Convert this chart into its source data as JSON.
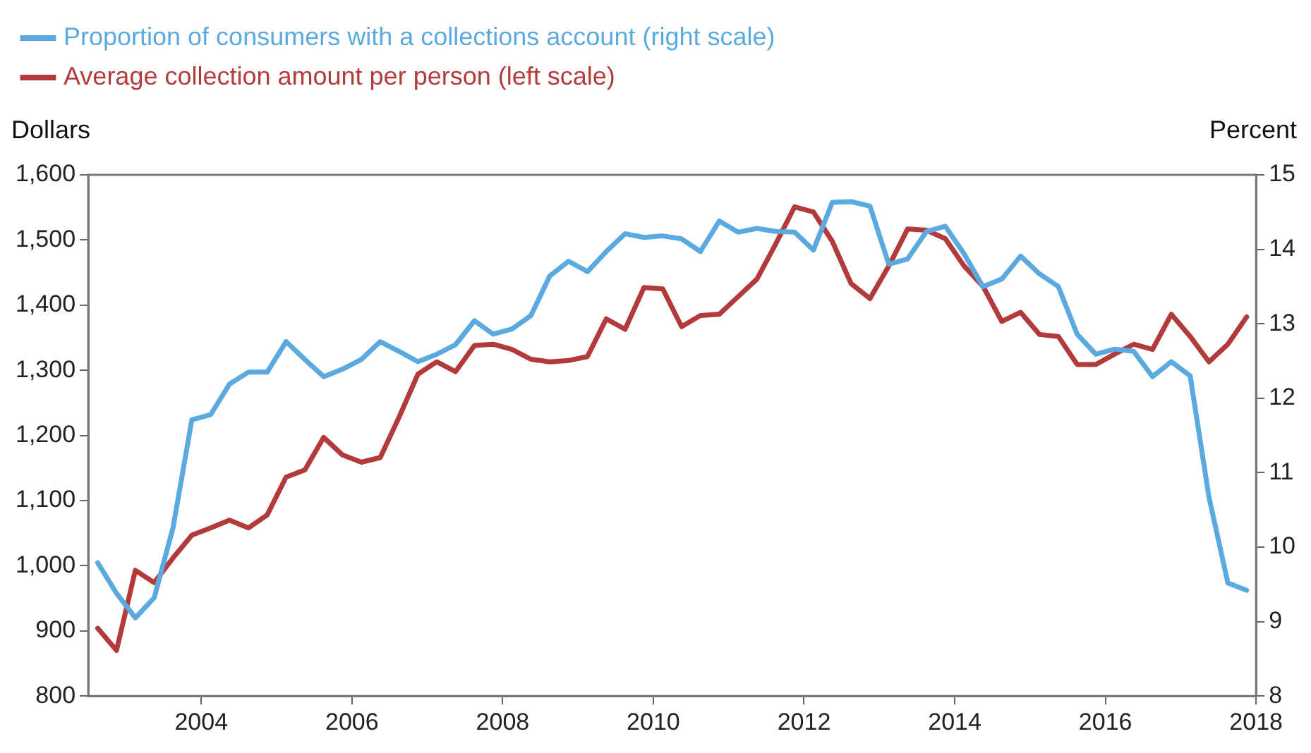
{
  "chart_data": {
    "type": "line",
    "x": [
      2003.125,
      2003.375,
      2003.625,
      2003.875,
      2004.125,
      2004.375,
      2004.625,
      2004.875,
      2005.125,
      2005.375,
      2005.625,
      2005.875,
      2006.125,
      2006.375,
      2006.625,
      2006.875,
      2007.125,
      2007.375,
      2007.625,
      2007.875,
      2008.125,
      2008.375,
      2008.625,
      2008.875,
      2009.125,
      2009.375,
      2009.625,
      2009.875,
      2010.125,
      2010.375,
      2010.625,
      2010.875,
      2011.125,
      2011.375,
      2011.625,
      2011.875,
      2012.125,
      2012.375,
      2012.625,
      2012.875,
      2013.125,
      2013.375,
      2013.625,
      2013.875,
      2014.125,
      2014.375,
      2014.625,
      2014.875,
      2015.125,
      2015.375,
      2015.625,
      2015.875,
      2016.125,
      2016.375,
      2016.625,
      2016.875,
      2017.125,
      2017.375,
      2017.625,
      2017.875,
      2018.125,
      2018.375
    ],
    "series": [
      {
        "name": "Proportion of consumers with a collections account (right scale)",
        "color": "#5aaae0",
        "axis": "y2",
        "values": [
          9.79,
          9.38,
          9.05,
          9.32,
          10.26,
          11.71,
          11.78,
          12.19,
          12.35,
          12.35,
          12.76,
          12.52,
          12.29,
          12.39,
          12.52,
          12.76,
          12.63,
          12.49,
          12.59,
          12.72,
          13.04,
          12.86,
          12.93,
          13.11,
          13.64,
          13.84,
          13.7,
          13.97,
          14.21,
          14.16,
          14.18,
          14.14,
          13.97,
          14.38,
          14.23,
          14.28,
          14.24,
          14.23,
          13.99,
          14.63,
          14.64,
          14.58,
          13.8,
          13.87,
          14.24,
          14.31,
          13.94,
          13.5,
          13.6,
          13.91,
          13.67,
          13.5,
          12.86,
          12.59,
          12.66,
          12.63,
          12.29,
          12.49,
          12.3,
          10.67,
          9.52,
          9.42
        ]
      },
      {
        "name": "Average collection amount per person (left scale)",
        "color": "#b23a3a",
        "values": [
          904,
          870,
          993,
          974,
          1012,
          1047,
          1058,
          1070,
          1058,
          1078,
          1136,
          1147,
          1197,
          1170,
          1159,
          1166,
          1228,
          1294,
          1313,
          1298,
          1338,
          1340,
          1332,
          1317,
          1313,
          1315,
          1321,
          1379,
          1363,
          1427,
          1425,
          1367,
          1384,
          1386,
          1413,
          1440,
          1494,
          1551,
          1543,
          1498,
          1433,
          1410,
          1460,
          1517,
          1515,
          1502,
          1460,
          1429,
          1375,
          1389,
          1355,
          1352,
          1309,
          1309,
          1325,
          1340,
          1332,
          1386,
          1352,
          1313,
          1340,
          1382
        ]
      }
    ],
    "ylabel": "Dollars",
    "y2label": "Percent",
    "xlim": [
      2003,
      2018.5
    ],
    "xticks": [
      {
        "value": 2004.5,
        "label": "2004"
      },
      {
        "value": 2006.5,
        "label": "2006"
      },
      {
        "value": 2008.5,
        "label": "2008"
      },
      {
        "value": 2010.5,
        "label": "2010"
      },
      {
        "value": 2012.5,
        "label": "2012"
      },
      {
        "value": 2014.5,
        "label": "2014"
      },
      {
        "value": 2016.5,
        "label": "2016"
      },
      {
        "value": 2018.5,
        "label": "2018"
      }
    ],
    "ylim": [
      800,
      1600
    ],
    "yticks": [
      {
        "value": 800,
        "label": "800"
      },
      {
        "value": 900,
        "label": "900"
      },
      {
        "value": 1000,
        "label": "1,000"
      },
      {
        "value": 1100,
        "label": "1,100"
      },
      {
        "value": 1200,
        "label": "1,200"
      },
      {
        "value": 1300,
        "label": "1,300"
      },
      {
        "value": 1400,
        "label": "1,400"
      },
      {
        "value": 1500,
        "label": "1,500"
      },
      {
        "value": 1600,
        "label": "1,600"
      }
    ],
    "y2lim": [
      8,
      15
    ],
    "y2ticks": [
      8,
      9,
      10,
      11,
      12,
      13,
      14,
      15
    ],
    "grid": false,
    "legend": "top left",
    "marker": "none",
    "line_style": "solid"
  }
}
